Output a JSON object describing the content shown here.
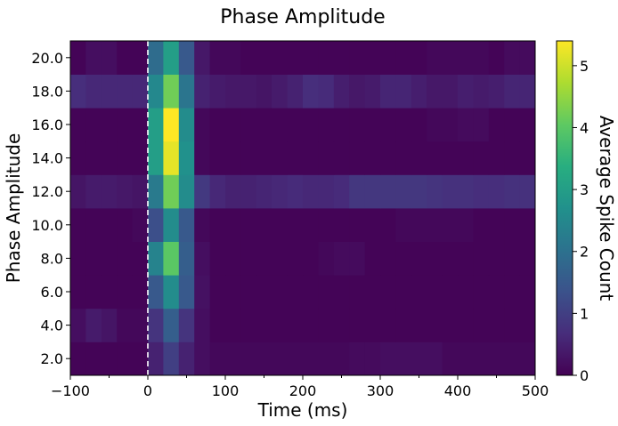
{
  "chart_data": {
    "type": "heatmap",
    "title": "Phase Amplitude",
    "xlabel": "Time (ms)",
    "ylabel": "Phase Amplitude",
    "colorbar_label": "Average Spike Count",
    "colormap": "viridis",
    "xlim": [
      -100,
      500
    ],
    "ylim": [
      1,
      21
    ],
    "clim": [
      0,
      5.4
    ],
    "x_ticks": [
      -100,
      0,
      100,
      200,
      300,
      400,
      500
    ],
    "x_tick_labels": [
      "−100",
      "0",
      "100",
      "200",
      "300",
      "400",
      "500"
    ],
    "y_ticks": [
      2,
      4,
      6,
      8,
      10,
      12,
      14,
      16,
      18,
      20
    ],
    "y_tick_labels": [
      "2.0",
      "4.0",
      "6.0",
      "8.0",
      "10.0",
      "12.0",
      "14.0",
      "16.0",
      "18.0",
      "20.0"
    ],
    "colorbar_ticks": [
      0,
      1,
      2,
      3,
      4,
      5
    ],
    "colorbar_tick_labels": [
      "0",
      "1",
      "2",
      "3",
      "4",
      "5"
    ],
    "vline": {
      "x": 0,
      "style": "dashed",
      "color": "#ffffff"
    },
    "grid": false,
    "x_bin_width": 20,
    "x_bin_start": -100,
    "y_bin_edges": [
      1,
      3,
      5,
      7,
      9,
      11,
      13,
      15,
      17,
      19,
      21
    ],
    "values": [
      [
        0.05,
        0.05,
        0.05,
        0.05,
        0.05,
        0.5,
        1.0,
        0.5,
        0.2,
        0.1,
        0.1,
        0.1,
        0.1,
        0.1,
        0.1,
        0.1,
        0.1,
        0.1,
        0.15,
        0.15,
        0.2,
        0.2,
        0.2,
        0.2,
        0.1,
        0.1,
        0.1,
        0.1,
        0.1,
        0.1
      ],
      [
        0.2,
        0.4,
        0.3,
        0.1,
        0.1,
        0.8,
        1.6,
        0.8,
        0.2,
        0.05,
        0.05,
        0.05,
        0.05,
        0.05,
        0.05,
        0.05,
        0.05,
        0.05,
        0.05,
        0.05,
        0.05,
        0.05,
        0.05,
        0.05,
        0.05,
        0.05,
        0.05,
        0.05,
        0.05,
        0.05
      ],
      [
        0.05,
        0.05,
        0.05,
        0.05,
        0.05,
        1.5,
        2.6,
        1.5,
        0.25,
        0.05,
        0.05,
        0.05,
        0.05,
        0.05,
        0.05,
        0.05,
        0.05,
        0.05,
        0.05,
        0.05,
        0.05,
        0.05,
        0.05,
        0.05,
        0.05,
        0.05,
        0.05,
        0.05,
        0.05,
        0.05
      ],
      [
        0.05,
        0.05,
        0.05,
        0.05,
        0.05,
        2.4,
        4.0,
        1.6,
        0.2,
        0.05,
        0.05,
        0.05,
        0.05,
        0.05,
        0.05,
        0.05,
        0.1,
        0.15,
        0.15,
        0.05,
        0.05,
        0.05,
        0.05,
        0.05,
        0.05,
        0.05,
        0.05,
        0.05,
        0.05,
        0.05
      ],
      [
        0.05,
        0.05,
        0.05,
        0.05,
        0.1,
        1.3,
        2.6,
        1.5,
        0.1,
        0.05,
        0.05,
        0.05,
        0.05,
        0.05,
        0.05,
        0.05,
        0.05,
        0.05,
        0.05,
        0.05,
        0.05,
        0.1,
        0.1,
        0.1,
        0.1,
        0.1,
        0.05,
        0.05,
        0.05,
        0.05
      ],
      [
        0.3,
        0.4,
        0.4,
        0.35,
        0.3,
        2.2,
        4.2,
        2.6,
        0.9,
        0.6,
        0.5,
        0.5,
        0.55,
        0.6,
        0.65,
        0.6,
        0.6,
        0.65,
        0.85,
        0.85,
        0.85,
        0.85,
        0.85,
        0.8,
        0.75,
        0.75,
        0.7,
        0.7,
        0.75,
        0.75
      ],
      [
        0.05,
        0.05,
        0.05,
        0.05,
        0.05,
        3.0,
        5.2,
        2.7,
        0.1,
        0.05,
        0.05,
        0.05,
        0.05,
        0.05,
        0.05,
        0.05,
        0.05,
        0.05,
        0.05,
        0.05,
        0.05,
        0.05,
        0.05,
        0.05,
        0.05,
        0.05,
        0.05,
        0.05,
        0.05,
        0.05
      ],
      [
        0.05,
        0.05,
        0.05,
        0.05,
        0.05,
        3.0,
        5.4,
        2.6,
        0.1,
        0.05,
        0.05,
        0.05,
        0.05,
        0.05,
        0.05,
        0.05,
        0.05,
        0.05,
        0.05,
        0.05,
        0.05,
        0.05,
        0.05,
        0.1,
        0.1,
        0.15,
        0.15,
        0.05,
        0.05,
        0.05
      ],
      [
        0.7,
        0.6,
        0.6,
        0.6,
        0.6,
        2.5,
        4.2,
        2.1,
        0.5,
        0.4,
        0.35,
        0.35,
        0.3,
        0.4,
        0.5,
        0.7,
        0.65,
        0.45,
        0.35,
        0.4,
        0.55,
        0.55,
        0.45,
        0.35,
        0.35,
        0.45,
        0.4,
        0.45,
        0.55,
        0.55
      ],
      [
        0.05,
        0.2,
        0.2,
        0.05,
        0.05,
        1.9,
        3.0,
        1.5,
        0.35,
        0.1,
        0.1,
        0.05,
        0.05,
        0.05,
        0.05,
        0.05,
        0.05,
        0.05,
        0.05,
        0.05,
        0.05,
        0.05,
        0.05,
        0.1,
        0.1,
        0.1,
        0.1,
        0.05,
        0.15,
        0.15
      ]
    ]
  }
}
